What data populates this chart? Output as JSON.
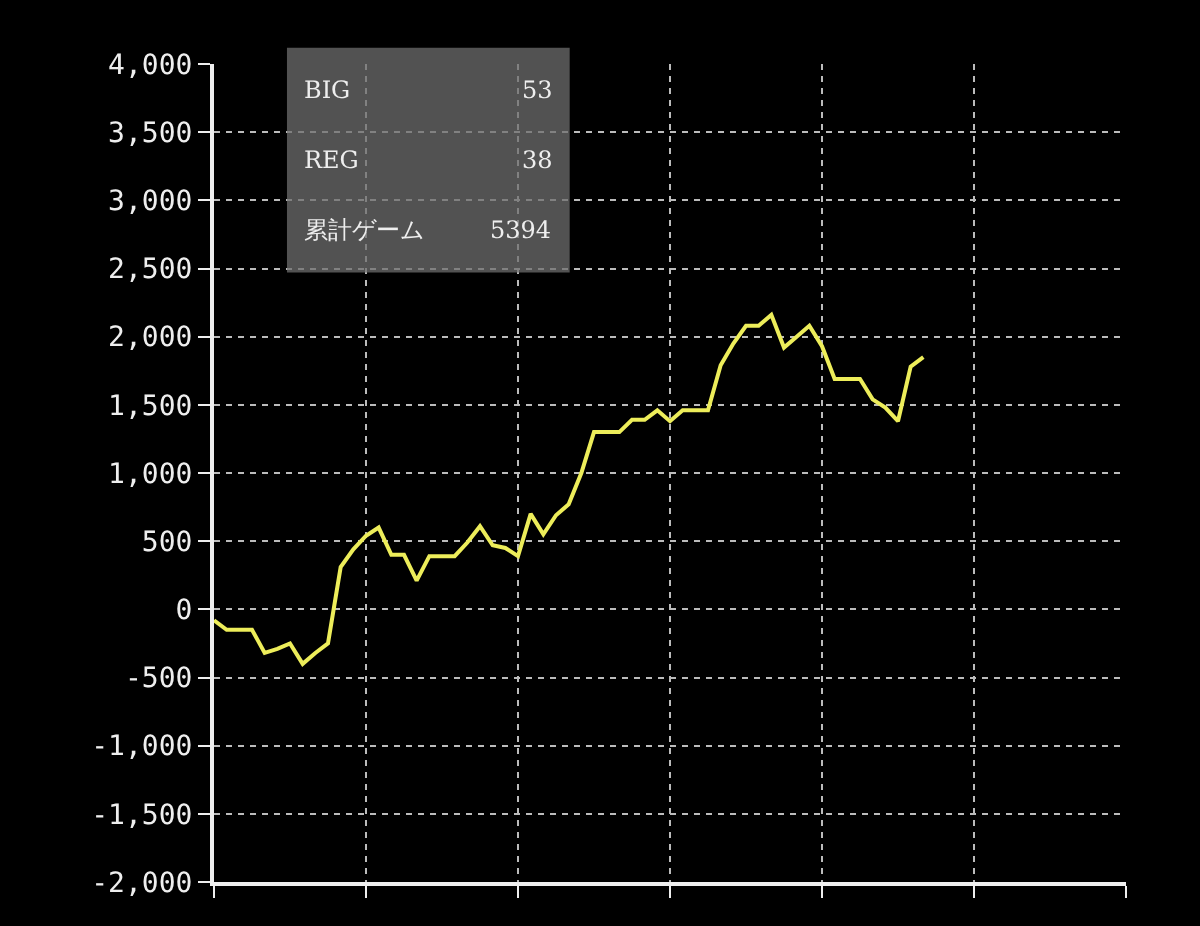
{
  "chart_data": {
    "type": "line",
    "categories": [
      null,
      null,
      null,
      null,
      null,
      null,
      null,
      null,
      null,
      null,
      null,
      null,
      null,
      null,
      null,
      null,
      null,
      null,
      null,
      null,
      null,
      null,
      null,
      null,
      null,
      null,
      null,
      null,
      null,
      null,
      null,
      null,
      null,
      null,
      null,
      null,
      null,
      null,
      null,
      null,
      null,
      null,
      null,
      null,
      null,
      null,
      null,
      null,
      null,
      null,
      null,
      null,
      null,
      null,
      null,
      null,
      null,
      null,
      null,
      null,
      null,
      null,
      null,
      null,
      null,
      null,
      null,
      null,
      null,
      null,
      null,
      null,
      null
    ],
    "series": [
      {
        "color": "#eded5a",
        "values": [
          -80,
          -150,
          -150,
          -150,
          -320,
          -290,
          -250,
          -400,
          -320,
          -250,
          310,
          440,
          540,
          600,
          400,
          400,
          210,
          390,
          390,
          390,
          490,
          610,
          470,
          450,
          390,
          700,
          550,
          690,
          770,
          1000,
          1300,
          1300,
          1300,
          1390,
          1390,
          1460,
          1380,
          1460,
          1460,
          1460,
          1790,
          1950,
          2080,
          2080,
          2160,
          1920,
          2000,
          2080,
          1930,
          1690,
          1690,
          1690,
          1540,
          1480,
          1380,
          1780,
          1850,
          null,
          null,
          null,
          null,
          null,
          null,
          null,
          null,
          null,
          null,
          null,
          null,
          null,
          null,
          null,
          null
        ]
      }
    ],
    "ylim": [
      -2000,
      4000
    ],
    "yticks": [
      {
        "value": -2000,
        "label": "-2,000"
      },
      {
        "value": -1500,
        "label": "-1,500"
      },
      {
        "value": -1000,
        "label": "-1,000"
      },
      {
        "value": -500,
        "label": "-500"
      },
      0,
      500,
      {
        "value": 1000,
        "label": "1,000"
      },
      {
        "value": 1500,
        "label": "1,500"
      },
      {
        "value": 2000,
        "label": "2,000"
      },
      {
        "value": 2500,
        "label": "2,500"
      },
      {
        "value": 3000,
        "label": "3,000"
      },
      {
        "value": 3500,
        "label": "3,500"
      },
      {
        "value": 4000,
        "label": "4,000"
      }
    ],
    "annotations": [
      "BIG",
      "53",
      "REG",
      "38",
      "累計ゲーム",
      "5394"
    ],
    "grid": true,
    "marker": "none",
    "line_style": "solid"
  }
}
